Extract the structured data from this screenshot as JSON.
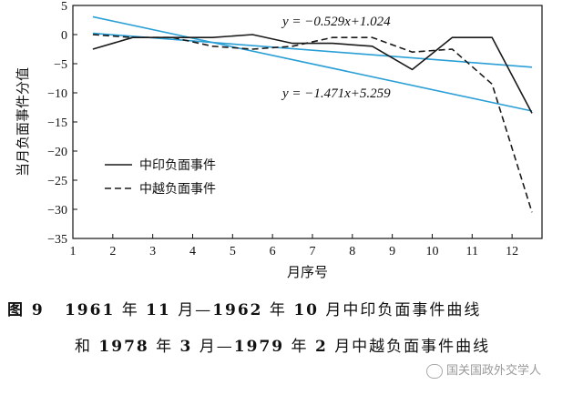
{
  "chart_data": {
    "type": "line",
    "xlabel": "月序号",
    "ylabel": "当月负面事件分值",
    "xlim": [
      1,
      12.75
    ],
    "ylim": [
      -35,
      5
    ],
    "xticks": [
      1,
      2,
      3,
      4,
      5,
      6,
      7,
      8,
      9,
      10,
      11,
      12
    ],
    "yticks": [
      5,
      0,
      -5,
      -10,
      -15,
      -20,
      -25,
      -30,
      -35
    ],
    "legend_position": "left",
    "series": [
      {
        "name": "中印负面事件",
        "style": "solid",
        "color": "#1a1a1a",
        "x": [
          1.5,
          2.5,
          3.5,
          4.5,
          5.5,
          6.5,
          7.5,
          8.5,
          9.5,
          10.5,
          11.5,
          12.5
        ],
        "y": [
          -2.5,
          -0.5,
          -0.5,
          -0.5,
          0,
          -1.5,
          -1.5,
          -2,
          -6,
          -0.5,
          -0.5,
          -13.5
        ]
      },
      {
        "name": "中越负面事件",
        "style": "dashed",
        "color": "#1a1a1a",
        "x": [
          1.5,
          2.5,
          3.5,
          4.5,
          5.5,
          6.5,
          7.5,
          8.5,
          9.5,
          10.5,
          11.5,
          12.5
        ],
        "y": [
          0,
          -0.5,
          -0.5,
          -2,
          -2.5,
          -2,
          -0.5,
          -0.5,
          -3,
          -2.5,
          -8.5,
          -30.5
        ]
      }
    ],
    "trendlines": [
      {
        "label": "y = −0.529x+1.024",
        "slope": -0.529,
        "intercept": 1.024,
        "color": "#2a9fd6"
      },
      {
        "label": "y = −1.471x+5.259",
        "slope": -1.471,
        "intercept": 5.259,
        "color": "#2a9fd6"
      }
    ]
  },
  "caption": {
    "line1": {
      "fig": "图 9",
      "y1": "1961",
      "w1": "年",
      "m1": "11",
      "w2": "月—",
      "y2": "1962",
      "w3": "年",
      "m2": "10",
      "w4": "月中印负面事件曲线"
    },
    "line2": {
      "w0": "和",
      "y1": "1978",
      "w1": "年",
      "m1": "3",
      "w2": "月—",
      "y2": "1979",
      "w3": "年",
      "m2": "2",
      "w4": "月中越负面事件曲线"
    }
  },
  "watermark": "国关国政外交学人"
}
